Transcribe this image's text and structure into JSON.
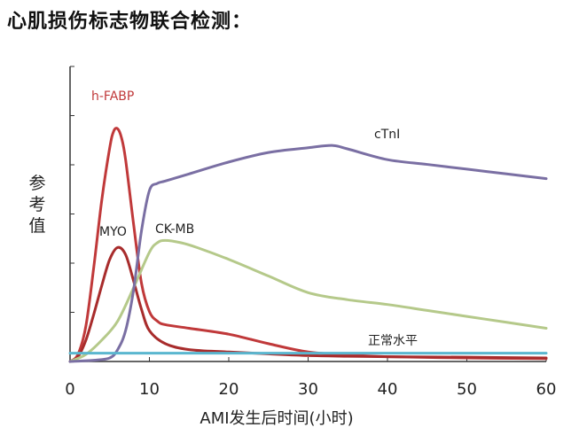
{
  "title": "心肌损伤标志物联合检测：",
  "colors": {
    "h_fabp": "#c0393a",
    "myo": "#a82c2c",
    "ck_mb": "#b5c98a",
    "ctni": "#7a6fa3",
    "normal": "#5ab6cf",
    "axis": "#333333"
  },
  "chart_data": {
    "type": "line",
    "title": "",
    "xlabel": "AMI发生后时间(小时)",
    "ylabel": "参考值",
    "xlim": [
      0,
      60
    ],
    "ylim": [
      0,
      10
    ],
    "x_ticks": [
      0,
      10,
      20,
      30,
      40,
      50,
      60
    ],
    "y_ticks_shown": false,
    "grid": false,
    "series": [
      {
        "name": "h-FABP",
        "color": "#c0393a",
        "x": [
          0,
          1,
          2,
          3,
          4,
          5,
          5.5,
          6,
          6.5,
          7,
          8,
          9,
          10,
          11,
          12,
          15,
          20,
          25,
          30,
          35,
          40,
          50,
          60
        ],
        "y": [
          0,
          0.3,
          1.5,
          4.0,
          6.8,
          9.0,
          9.7,
          9.8,
          9.4,
          8.5,
          5.8,
          3.3,
          2.1,
          1.7,
          1.55,
          1.4,
          1.15,
          0.75,
          0.4,
          0.28,
          0.2,
          0.15,
          0.12
        ]
      },
      {
        "name": "MYO",
        "color": "#a82c2c",
        "x": [
          0,
          1,
          2,
          3,
          4,
          5,
          6,
          7,
          8,
          9,
          10,
          12,
          15,
          20,
          25,
          30,
          35,
          40,
          50,
          60
        ],
        "y": [
          0,
          0.2,
          0.9,
          2.0,
          3.2,
          4.3,
          4.8,
          4.5,
          3.4,
          2.2,
          1.3,
          0.75,
          0.5,
          0.4,
          0.32,
          0.25,
          0.22,
          0.2,
          0.18,
          0.15
        ]
      },
      {
        "name": "CK-MB",
        "color": "#b5c98a",
        "x": [
          0,
          2,
          4,
          6,
          8,
          10,
          11,
          12,
          14,
          16,
          20,
          25,
          30,
          35,
          40,
          45,
          50,
          55,
          60
        ],
        "y": [
          0,
          0.3,
          0.9,
          1.7,
          3.1,
          4.6,
          5.0,
          5.1,
          5.0,
          4.8,
          4.3,
          3.6,
          2.9,
          2.6,
          2.4,
          2.15,
          1.9,
          1.65,
          1.4
        ]
      },
      {
        "name": "cTnI",
        "color": "#7a6fa3",
        "x": [
          0,
          3,
          5,
          6,
          7,
          8,
          9,
          10,
          11,
          12,
          15,
          20,
          25,
          30,
          33,
          35,
          40,
          45,
          50,
          55,
          60
        ],
        "y": [
          0,
          0.05,
          0.15,
          0.5,
          1.3,
          3.0,
          5.5,
          7.2,
          7.5,
          7.6,
          7.9,
          8.4,
          8.8,
          9.0,
          9.1,
          8.95,
          8.5,
          8.3,
          8.1,
          7.9,
          7.7
        ]
      },
      {
        "name": "正常水平",
        "color": "#5ab6cf",
        "x": [
          0,
          60
        ],
        "y": [
          0.35,
          0.35
        ]
      }
    ]
  }
}
